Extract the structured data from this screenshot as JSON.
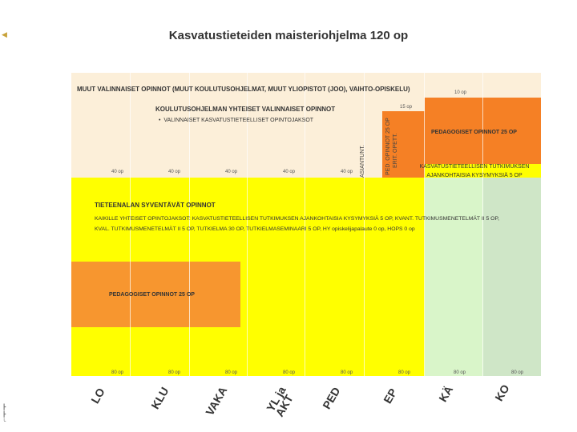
{
  "title": "Kasvatustieteiden maisteriohjelma 120 op",
  "muut_valinnaiset": "MUUT VALINNAISET OPINNOT (MUUT KOULUTUSOHJELMAT, MUUT YLIOPISTOT (JOO), VAIHTO-OPISKELU)",
  "koulutusohjelman_title": "KOULUTUSOHJELMAN YHTEISET VALINNAISET OPINNOT",
  "koulutusohjelman_bullet": "VALINNAISET KASVATUSTIETEELLISET OPINTOJAKSOT",
  "asiantunt": "ASIANTUNT.",
  "ped_opinnot_vert": "PED. OPINNOT 25 OP",
  "erit_opett": "ERIT. OPETT.",
  "op15": "15 op",
  "op10": "10 op",
  "pedagogiset_right": "PEDAGOGISET OPINNOT 25 OP",
  "kasvatus_right_1": "KASVATUSTIETEELLISEN TUTKIMUKSEN",
  "kasvatus_right_2": "AJANKOHTAISIA KYSYMYKSIÄ 5 OP",
  "op40": [
    "40 op",
    "40 op",
    "40 op",
    "40 op",
    "40 op"
  ],
  "tieteenala_title": "TIETEENALAN SYVENTÄVÄT OPINNOT",
  "tieteenala_line1": "KAIKILLE YHTEISET OPINTOJAKSOT: KASVATUSTIETEELLISEN TUTKIMUKSEN AJANKOHTAISIA KYSYMYKSIÄ 5 OP, KVANT. TUTKIMUSMENETELMÄT II 5 OP,",
  "tieteenala_line2": "KVAL. TUTKIMUSMENETELMÄT II 5 OP, TUTKIELMA 30 OP, TUTKIELMASEMINAARI 5 OP, HY opiskelijapalaute 0 op, HOPS 0 op",
  "pedagogiset_left": "PEDAGOGISET OPINNOT 25 OP",
  "op80": [
    "80 op",
    "80 op",
    "80 op",
    "80 op",
    "80 op",
    "80 op",
    "80 op",
    "80 op"
  ],
  "programs": [
    "LO",
    "KLU",
    "VAKA",
    "YL ja\nAKT",
    "PED",
    "EP",
    "KÄ",
    "KO"
  ],
  "colors": {
    "beige": "#fcefd9",
    "yellow": "#ffff00",
    "orange": "#f58025",
    "orange_light": "#f7962f",
    "green_light": "#d9f5c9",
    "green_mid": "#cfe6c7"
  }
}
